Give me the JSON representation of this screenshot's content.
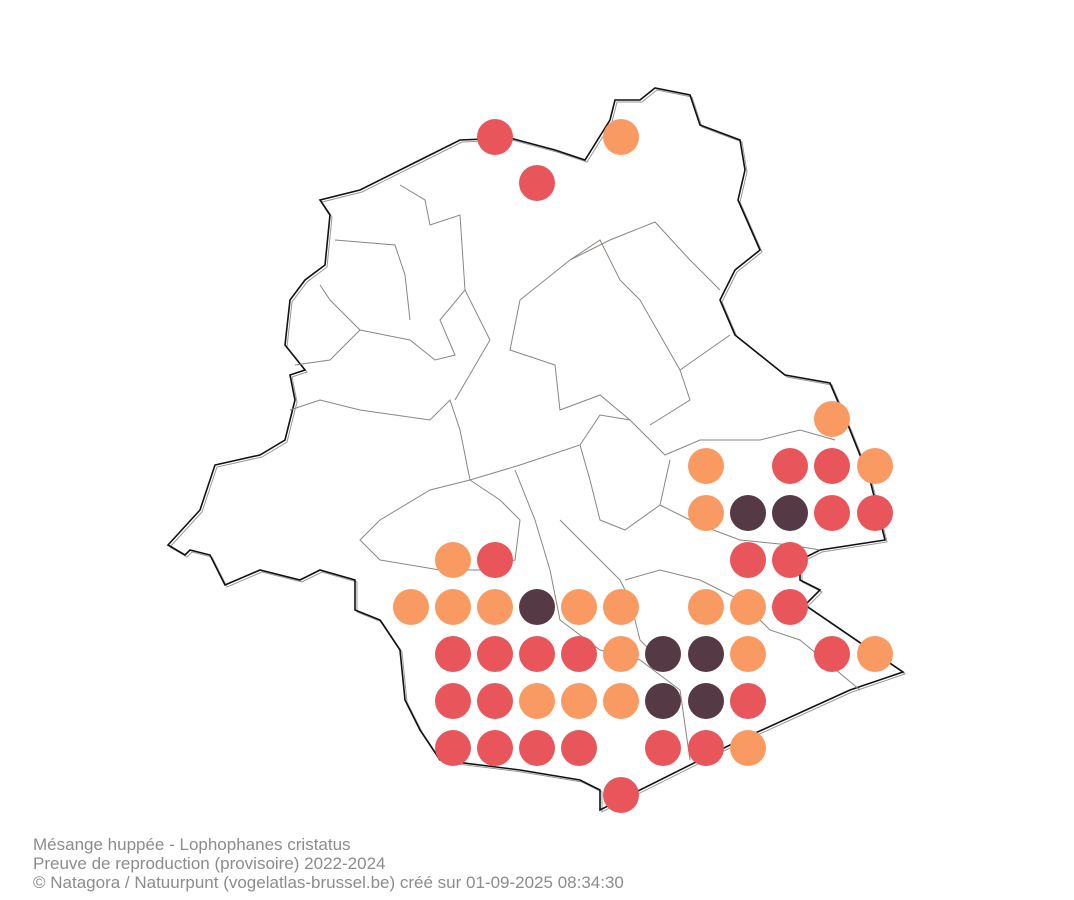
{
  "caption": {
    "species": "Mésange huppée - Lophophanes cristatus",
    "subtitle": "Preuve de reproduction (provisoire) 2022-2024",
    "credit": "© Natagora / Natuurpunt (vogelatlas-brussel.be) créé sur 01-09-2025 08:34:30"
  }
}
